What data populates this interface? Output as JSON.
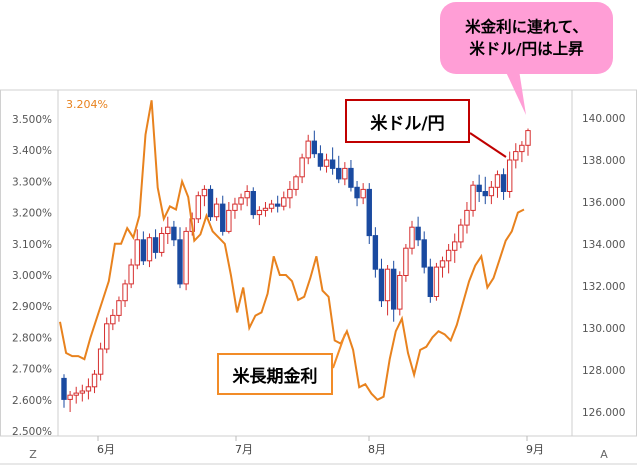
{
  "chart_data": {
    "type": "candlestick+line",
    "title": "",
    "x_ticks": [
      "6月",
      "7月",
      "8月",
      "9月"
    ],
    "left_axis": {
      "name": "米長期金利",
      "ticks": [
        "3.500%",
        "3.400%",
        "3.300%",
        "3.200%",
        "3.100%",
        "3.000%",
        "2.900%",
        "2.800%",
        "2.700%",
        "2.600%",
        "2.500%"
      ],
      "range": [
        2.5,
        3.5
      ]
    },
    "right_axis": {
      "name": "米ドル/円",
      "ticks": [
        "140.000",
        "138.000",
        "136.000",
        "134.000",
        "132.000",
        "130.000",
        "128.000",
        "126.000"
      ],
      "range": [
        126,
        140
      ]
    },
    "series": [
      {
        "name": "米長期金利",
        "kind": "line",
        "color": "#e8821e",
        "values": [
          2.85,
          2.75,
          2.74,
          2.74,
          2.73,
          2.8,
          2.86,
          2.92,
          2.98,
          3.1,
          3.1,
          3.15,
          3.12,
          3.19,
          3.45,
          3.56,
          3.28,
          3.18,
          3.22,
          3.21,
          3.3,
          3.25,
          3.11,
          3.13,
          3.19,
          3.14,
          3.12,
          3.1,
          3.0,
          2.88,
          2.96,
          2.83,
          2.87,
          2.88,
          2.94,
          3.06,
          3.0,
          3.0,
          2.98,
          2.92,
          2.93,
          2.99,
          3.06,
          2.95,
          2.93,
          2.79,
          2.78,
          2.82,
          2.76,
          2.64,
          2.65,
          2.62,
          2.6,
          2.61,
          2.73,
          2.82,
          2.86,
          2.75,
          2.68,
          2.76,
          2.77,
          2.8,
          2.82,
          2.81,
          2.79,
          2.84,
          2.91,
          2.98,
          3.03,
          3.06,
          2.96,
          2.99,
          3.05,
          3.11,
          3.14,
          3.2,
          3.21
        ]
      },
      {
        "name": "米ドル/円",
        "kind": "candlestick",
        "up_color": "#d62f2f",
        "down_color": "#1a4aa0",
        "ohlc": [
          [
            127.6,
            127.8,
            126.2,
            126.6
          ],
          [
            126.6,
            127.0,
            126.0,
            126.8
          ],
          [
            126.8,
            127.2,
            126.4,
            126.9
          ],
          [
            126.9,
            127.3,
            126.5,
            127.0
          ],
          [
            127.0,
            127.6,
            126.6,
            127.2
          ],
          [
            127.2,
            128.0,
            126.9,
            127.8
          ],
          [
            127.8,
            129.3,
            127.5,
            129.0
          ],
          [
            129.0,
            130.5,
            128.8,
            130.2
          ],
          [
            130.2,
            130.9,
            129.9,
            130.6
          ],
          [
            130.6,
            131.5,
            130.3,
            131.3
          ],
          [
            131.3,
            132.3,
            131.0,
            132.1
          ],
          [
            132.1,
            133.3,
            131.9,
            133.0
          ],
          [
            133.0,
            134.7,
            132.8,
            134.2
          ],
          [
            134.2,
            134.6,
            133.0,
            133.2
          ],
          [
            133.2,
            134.5,
            132.9,
            134.3
          ],
          [
            134.3,
            134.7,
            133.3,
            133.6
          ],
          [
            133.6,
            134.8,
            133.4,
            134.5
          ],
          [
            134.5,
            135.3,
            134.0,
            134.8
          ],
          [
            134.8,
            135.1,
            133.9,
            134.2
          ],
          [
            134.2,
            134.8,
            131.9,
            132.1
          ],
          [
            132.1,
            134.8,
            131.8,
            134.6
          ],
          [
            134.6,
            135.5,
            134.4,
            135.2
          ],
          [
            135.2,
            136.5,
            135.0,
            136.3
          ],
          [
            136.3,
            136.8,
            135.8,
            136.6
          ],
          [
            136.6,
            136.8,
            135.1,
            135.3
          ],
          [
            135.3,
            136.2,
            135.1,
            135.9
          ],
          [
            135.9,
            136.3,
            134.4,
            134.6
          ],
          [
            134.6,
            136.0,
            134.5,
            135.6
          ],
          [
            135.6,
            136.2,
            135.2,
            135.9
          ],
          [
            135.9,
            136.4,
            135.6,
            136.2
          ],
          [
            136.2,
            136.8,
            135.8,
            136.5
          ],
          [
            136.5,
            136.7,
            135.2,
            135.4
          ],
          [
            135.4,
            135.8,
            134.9,
            135.6
          ],
          [
            135.6,
            136.0,
            135.3,
            135.7
          ],
          [
            135.7,
            136.1,
            135.5,
            135.9
          ],
          [
            135.9,
            136.3,
            135.5,
            135.8
          ],
          [
            135.8,
            136.5,
            135.6,
            136.2
          ],
          [
            136.2,
            137.0,
            135.7,
            136.6
          ],
          [
            136.6,
            137.3,
            136.3,
            137.2
          ],
          [
            137.2,
            138.3,
            136.9,
            138.1
          ],
          [
            138.1,
            139.2,
            137.8,
            138.9
          ],
          [
            138.9,
            139.4,
            138.1,
            138.3
          ],
          [
            138.3,
            138.7,
            137.5,
            137.7
          ],
          [
            137.7,
            138.3,
            137.4,
            138.0
          ],
          [
            138.0,
            138.6,
            137.3,
            137.6
          ],
          [
            137.6,
            138.2,
            136.9,
            137.1
          ],
          [
            137.1,
            137.9,
            136.8,
            137.6
          ],
          [
            137.6,
            138.0,
            136.5,
            136.7
          ],
          [
            136.7,
            137.0,
            135.8,
            136.2
          ],
          [
            136.2,
            136.9,
            135.9,
            136.6
          ],
          [
            136.6,
            136.9,
            134.0,
            134.4
          ],
          [
            134.4,
            134.8,
            132.4,
            132.8
          ],
          [
            132.8,
            133.3,
            131.0,
            131.3
          ],
          [
            131.3,
            133.0,
            130.6,
            132.8
          ],
          [
            132.8,
            133.2,
            130.3,
            130.9
          ],
          [
            130.9,
            132.7,
            130.6,
            132.5
          ],
          [
            132.5,
            134.0,
            132.2,
            133.8
          ],
          [
            133.8,
            135.1,
            133.5,
            134.8
          ],
          [
            134.8,
            135.3,
            133.9,
            134.2
          ],
          [
            134.2,
            134.6,
            132.6,
            132.9
          ],
          [
            132.9,
            133.3,
            131.2,
            131.5
          ],
          [
            131.5,
            133.1,
            131.3,
            132.9
          ],
          [
            132.9,
            133.4,
            132.4,
            133.2
          ],
          [
            133.2,
            134.0,
            132.6,
            133.7
          ],
          [
            133.7,
            134.5,
            133.1,
            134.1
          ],
          [
            134.1,
            135.2,
            133.8,
            134.9
          ],
          [
            134.9,
            136.0,
            134.5,
            135.6
          ],
          [
            135.6,
            137.0,
            135.3,
            136.8
          ],
          [
            136.8,
            137.3,
            136.0,
            136.5
          ],
          [
            136.5,
            137.2,
            135.9,
            136.3
          ],
          [
            136.3,
            137.0,
            135.9,
            136.7
          ],
          [
            136.7,
            137.5,
            136.2,
            137.3
          ],
          [
            137.3,
            137.6,
            136.1,
            136.5
          ],
          [
            136.5,
            138.4,
            136.2,
            138.0
          ],
          [
            138.0,
            138.8,
            137.6,
            138.4
          ],
          [
            138.4,
            138.9,
            137.9,
            138.7
          ],
          [
            138.7,
            139.5,
            138.2,
            139.4
          ]
        ]
      }
    ],
    "annotations": {
      "usdjpy_callout": "米ドル/円",
      "yield_callout": "米長期金利",
      "bubble_lines": [
        "米金利に連れて、",
        "米ドル/円は上昇"
      ]
    },
    "last_value_label": "3.204%"
  },
  "ui": {
    "corner_left": "Z",
    "corner_right": "A"
  }
}
